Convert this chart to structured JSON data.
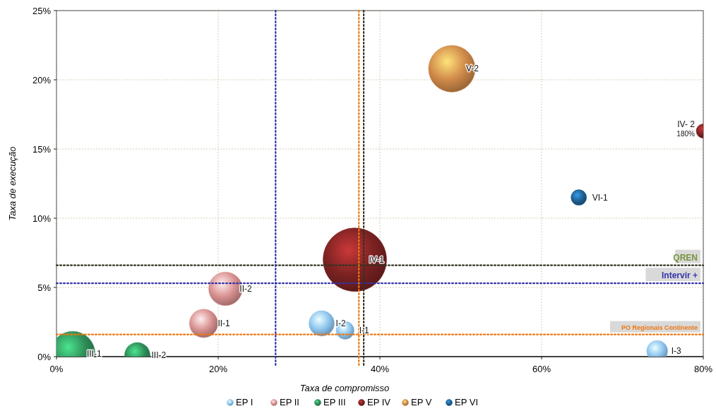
{
  "chart_data": {
    "type": "bubble",
    "xlabel": "Taxa de compromisso",
    "ylabel": "Taxa de execução",
    "xlim": [
      0,
      80
    ],
    "xticks": [
      {
        "value": 0,
        "label": "0%"
      },
      {
        "value": 20,
        "label": "20%"
      },
      {
        "value": 40,
        "label": "40%"
      },
      {
        "value": 60,
        "label": "60%"
      },
      {
        "value": 80,
        "label": "80%"
      }
    ],
    "ylim": [
      0,
      25
    ],
    "yticks": [
      {
        "value": 0,
        "label": "0%"
      },
      {
        "value": 5,
        "label": "5%"
      },
      {
        "value": 10,
        "label": "10%"
      },
      {
        "value": 15,
        "label": "15%"
      },
      {
        "value": 20,
        "label": "20%"
      },
      {
        "value": 25,
        "label": "25%"
      }
    ],
    "grid": true,
    "legend": "bottom",
    "series": [
      {
        "name": "EP I",
        "color": "#8ec5ee",
        "x": [
          35.7,
          32.8,
          74.3
        ],
        "values": [
          1.9,
          2.4,
          0.4
        ],
        "sizes": [
          0.08,
          0.16,
          0.11
        ]
      },
      {
        "name": "EP II",
        "color": "#d89090",
        "x": [
          18.2,
          20.9
        ],
        "values": [
          2.4,
          4.9
        ],
        "sizes": [
          0.2,
          0.28
        ]
      },
      {
        "name": "EP III",
        "color": "#2e8b57",
        "x": [
          2,
          10
        ],
        "values": [
          0.2,
          0.1
        ],
        "sizes": [
          0.5,
          0.16
        ]
      },
      {
        "name": "EP IV",
        "color": "#7b2222",
        "x": [
          36.9,
          80
        ],
        "values": [
          7.0,
          16.3
        ],
        "sizes": [
          1,
          0.05
        ]
      },
      {
        "name": "EP V",
        "color": "#d08a4a",
        "x": [
          48.9
        ],
        "values": [
          20.8
        ],
        "sizes": [
          0.54
        ]
      },
      {
        "name": "EP VI",
        "color": "#1f5f8f",
        "x": [
          64.6
        ],
        "values": [
          11.5
        ],
        "sizes": [
          0.06
        ]
      }
    ],
    "ref_lines": [
      {
        "axis": "y",
        "value": 6.6,
        "label": "QREN",
        "color": "#333322",
        "line_style": "dotted"
      },
      {
        "axis": "y",
        "value": 5.3,
        "label": "Intervir +",
        "color": "#3333aa",
        "line_style": "dotted"
      },
      {
        "axis": "y",
        "value": 1.6,
        "label": "PO Regionais Continente",
        "color": "#ee7711",
        "line_style": "dotted"
      },
      {
        "axis": "x",
        "value": 38.0,
        "color": "#333322",
        "line_style": "dotted"
      },
      {
        "axis": "x",
        "value": 27.1,
        "color": "#3333aa",
        "line_style": "dotted"
      },
      {
        "axis": "x",
        "value": 37.4,
        "color": "#ee7711",
        "line_style": "dotted"
      }
    ],
    "annotations": [
      {
        "text": "I-1",
        "x": 35.7,
        "y": 1.9
      },
      {
        "text": "I-2",
        "x": 32.8,
        "y": 2.4
      },
      {
        "text": "I-3",
        "x": 74.3,
        "y": 0.4
      },
      {
        "text": "II-1",
        "x": 18.2,
        "y": 2.4
      },
      {
        "text": "II-2",
        "x": 20.9,
        "y": 4.9
      },
      {
        "text": "III-1",
        "x": 2,
        "y": 0.2
      },
      {
        "text": "III-2",
        "x": 10,
        "y": 0.1
      },
      {
        "text": "IV-1",
        "x": 36.9,
        "y": 7.0
      },
      {
        "text": "IV- 2",
        "x": 80,
        "y": 16.3
      },
      {
        "text": "180%",
        "x": 80,
        "y": 16.3
      },
      {
        "text": "V-2",
        "x": 48.9,
        "y": 20.8
      },
      {
        "text": "VI-1",
        "x": 64.6,
        "y": 11.5
      }
    ]
  }
}
